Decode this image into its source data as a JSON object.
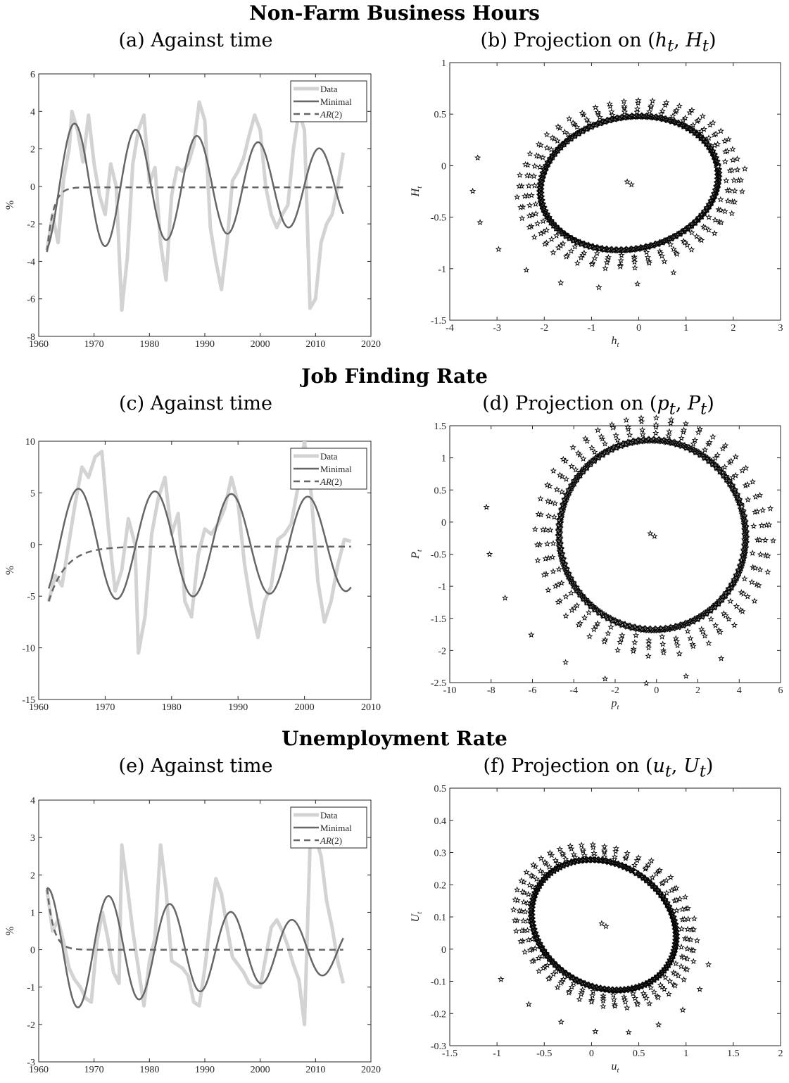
{
  "rows": [
    {
      "title": "Non-Farm Business Hours",
      "left_title": "(a) Against time",
      "right_title_pre": "(b) Projection on ",
      "right_math": "(h_t, H_t)"
    },
    {
      "title": "Job Finding Rate",
      "left_title": "(c) Against time",
      "right_title_pre": "(d) Projection on ",
      "right_math": "(p_t, P_t)"
    },
    {
      "title": "Unemployment Rate",
      "left_title": "(e) Against time",
      "right_title_pre": "(f) Projection on ",
      "right_math": "(u_t, U_t)"
    }
  ],
  "legend": {
    "data": "Data",
    "minimal": "Minimal",
    "ar2": "AR(2)"
  },
  "colors": {
    "data": "#d3d3d3",
    "minimal": "#666666",
    "ar2": "#666666",
    "scatter": "#000000"
  },
  "chart_data": [
    {
      "id": "a",
      "type": "line",
      "ylabel": "%",
      "xlim": [
        1960,
        2020
      ],
      "ylim": [
        -8,
        6
      ],
      "xticks": [
        1960,
        1970,
        1980,
        1990,
        2000,
        2010,
        2020
      ],
      "yticks": [
        -8,
        -6,
        -4,
        -2,
        0,
        2,
        4,
        6
      ],
      "series": [
        {
          "name": "Data",
          "x": [
            1961.5,
            1962.5,
            1963.5,
            1964.5,
            1965.5,
            1966,
            1967,
            1968,
            1969,
            1970,
            1971,
            1972,
            1973,
            1974,
            1975,
            1976,
            1977,
            1978,
            1979,
            1980,
            1981,
            1982,
            1983,
            1984,
            1985,
            1986,
            1987,
            1988,
            1989,
            1990,
            1991,
            1992,
            1993,
            1994,
            1995,
            1996,
            1997,
            1998,
            1999,
            2000,
            2001,
            2002,
            2003,
            2004,
            2005,
            2006,
            2007,
            2008,
            2009,
            2010,
            2011,
            2012,
            2013,
            2014,
            2015
          ],
          "y": [
            -3.4,
            -1.5,
            -3.0,
            0.4,
            2.0,
            4.0,
            3.0,
            1.3,
            3.8,
            1.2,
            -0.5,
            -1.5,
            1.2,
            0.0,
            -6.6,
            -3.8,
            1.2,
            3.0,
            3.8,
            0.2,
            1.0,
            -3.0,
            -5.0,
            -0.5,
            1.0,
            0.8,
            1.2,
            2.2,
            4.5,
            3.5,
            -2.2,
            -4.0,
            -5.5,
            -3.0,
            0.3,
            0.8,
            1.5,
            2.7,
            3.8,
            3.0,
            0.0,
            -1.5,
            -2.2,
            -1.5,
            -1.0,
            2.0,
            4.0,
            3.0,
            -6.5,
            -6.0,
            -3.0,
            -2.0,
            -1.5,
            0.0,
            1.8
          ]
        },
        {
          "name": "Minimal",
          "amp0": -3.5,
          "amp_end": -1.9,
          "period": 11.05,
          "peak_year": 1966.5,
          "x_start": 1961.5,
          "x_end": 2015
        },
        {
          "name": "AR(2)",
          "x_start": 1961.5,
          "x_end": 2015,
          "start_value": -3.5,
          "level": -0.05
        }
      ]
    },
    {
      "id": "b",
      "type": "scatter",
      "xlabel": "h_t",
      "ylabel": "H_t",
      "xlim": [
        -4,
        3
      ],
      "ylim": [
        -1.5,
        1
      ],
      "xticks": [
        -4,
        -3,
        -2,
        -1,
        0,
        1,
        2,
        3
      ],
      "yticks": [
        -1.5,
        -1,
        -0.5,
        0,
        0.5,
        1
      ],
      "ellipse": {
        "cx": -0.2,
        "cy": -0.17,
        "ax": 1.9,
        "ay": 0.64,
        "rot_deg": 11
      }
    },
    {
      "id": "c",
      "type": "line",
      "ylabel": "%",
      "xlim": [
        1960,
        2010
      ],
      "ylim": [
        -15,
        10
      ],
      "xticks": [
        1960,
        1970,
        1980,
        1990,
        2000,
        2010
      ],
      "yticks": [
        -15,
        -10,
        -5,
        0,
        5,
        10
      ],
      "series": [
        {
          "name": "Data",
          "x": [
            1961.5,
            1962.5,
            1963.5,
            1964.5,
            1965.5,
            1966.5,
            1967.5,
            1968.5,
            1969.5,
            1970.5,
            1971.5,
            1972.5,
            1973.5,
            1974.5,
            1975,
            1976,
            1977,
            1978,
            1979,
            1980,
            1981,
            1982,
            1983,
            1984,
            1985,
            1986,
            1987,
            1988,
            1989,
            1990,
            1991,
            1992,
            1993,
            1994,
            1995,
            1996,
            1997,
            1998,
            1999,
            2000,
            2001,
            2002,
            2003,
            2004,
            2005,
            2006,
            2007
          ],
          "y": [
            -5.5,
            -3.0,
            -4.0,
            0.0,
            4.0,
            7.5,
            6.5,
            8.5,
            9.0,
            1.5,
            -4.5,
            -2.5,
            2.5,
            0.0,
            -10.5,
            -7.0,
            1.0,
            4.5,
            6.5,
            1.0,
            3.0,
            -5.5,
            -7.0,
            -1.0,
            1.5,
            1.0,
            2.0,
            3.5,
            6.5,
            4.0,
            -2.0,
            -6.0,
            -9.0,
            -5.5,
            -4.0,
            0.5,
            1.0,
            2.0,
            5.5,
            10.0,
            5.0,
            -3.5,
            -7.5,
            -5.5,
            -2.0,
            0.5,
            0.3
          ]
        },
        {
          "name": "Minimal",
          "amp0": -5.5,
          "amp_end": -4.5,
          "period": 11.5,
          "peak_year": 1966,
          "x_start": 1961.5,
          "x_end": 2007
        },
        {
          "name": "AR(2)",
          "x_start": 1961.5,
          "x_end": 2007,
          "start_value": -5.5,
          "level": -0.2
        }
      ]
    },
    {
      "id": "d",
      "type": "scatter",
      "xlabel": "p_t",
      "ylabel": "P_t",
      "xlim": [
        -10,
        6
      ],
      "ylim": [
        -2.5,
        1.5
      ],
      "xticks": [
        -10,
        -8,
        -6,
        -4,
        -2,
        0,
        2,
        4,
        6
      ],
      "yticks": [
        -2.5,
        -2,
        -1.5,
        -1,
        -0.5,
        0,
        0.5,
        1,
        1.5
      ],
      "ellipse": {
        "cx": -0.2,
        "cy": -0.2,
        "ax": 4.5,
        "ay": 1.48,
        "rot_deg": 18
      }
    },
    {
      "id": "e",
      "type": "line",
      "ylabel": "%",
      "xlim": [
        1960,
        2020
      ],
      "ylim": [
        -3,
        4
      ],
      "xticks": [
        1960,
        1970,
        1980,
        1990,
        2000,
        2010,
        2020
      ],
      "yticks": [
        -3,
        -2,
        -1,
        0,
        1,
        2,
        3,
        4
      ],
      "series": [
        {
          "name": "Data",
          "x": [
            1961.5,
            1962.5,
            1963.5,
            1964.5,
            1965.5,
            1966.5,
            1967.5,
            1968.5,
            1969.5,
            1970.5,
            1971.5,
            1972.5,
            1973.5,
            1974.5,
            1975,
            1976,
            1977,
            1978,
            1979,
            1980,
            1981,
            1982,
            1983,
            1984,
            1985,
            1986,
            1987,
            1988,
            1989,
            1990,
            1991,
            1992,
            1993,
            1994,
            1995,
            1996,
            1997,
            1998,
            1999,
            2000,
            2001,
            2002,
            2003,
            2004,
            2005,
            2006,
            2007,
            2008,
            2009,
            2010,
            2011,
            2012,
            2013,
            2014,
            2015
          ],
          "y": [
            1.6,
            0.5,
            0.8,
            0.2,
            -0.5,
            -0.8,
            -1.0,
            -1.3,
            -1.4,
            0.2,
            1.0,
            0.3,
            -0.6,
            -0.9,
            2.8,
            1.7,
            0.5,
            -0.5,
            -1.5,
            -0.3,
            0.3,
            2.8,
            1.6,
            -0.3,
            -0.4,
            -0.5,
            -0.7,
            -1.4,
            -1.5,
            -0.5,
            0.8,
            1.9,
            1.5,
            0.6,
            -0.2,
            -0.4,
            -0.6,
            -0.9,
            -1.0,
            -1.0,
            -0.2,
            0.6,
            0.8,
            0.5,
            0.1,
            -0.4,
            -0.8,
            -2.0,
            2.8,
            3.0,
            2.5,
            1.3,
            0.6,
            -0.3,
            -0.9
          ]
        },
        {
          "name": "Minimal",
          "amp0": 1.65,
          "amp_end": 0.62,
          "period": 11.05,
          "peak_year": 1961.6,
          "x_start": 1961.5,
          "x_end": 2015
        },
        {
          "name": "AR(2)",
          "x_start": 1961.5,
          "x_end": 2015,
          "start_value": 1.65,
          "level": 0.0
        }
      ]
    },
    {
      "id": "f",
      "type": "scatter",
      "xlabel": "u_t",
      "ylabel": "U_t",
      "xlim": [
        -1.5,
        2
      ],
      "ylim": [
        -0.3,
        0.5
      ],
      "xticks": [
        -1.5,
        -1,
        -0.5,
        0,
        0.5,
        1,
        1.5,
        2
      ],
      "yticks": [
        -0.3,
        -0.2,
        -0.1,
        0,
        0.1,
        0.2,
        0.3,
        0.4,
        0.5
      ],
      "ellipse": {
        "cx": 0.13,
        "cy": 0.075,
        "ax": 0.65,
        "ay": 0.235,
        "rot_deg": 60
      }
    }
  ]
}
